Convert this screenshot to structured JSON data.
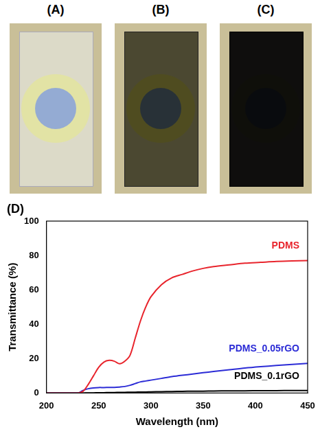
{
  "panels": [
    {
      "label": "(A)"
    },
    {
      "label": "(B)"
    },
    {
      "label": "(C)"
    }
  ],
  "chart_data": {
    "type": "line",
    "panel_label": "(D)",
    "x_label": "Wavelength (nm)",
    "y_label": "Transmittance (%)",
    "x": [
      200,
      210,
      220,
      230,
      235,
      240,
      245,
      250,
      255,
      260,
      265,
      270,
      275,
      280,
      285,
      290,
      295,
      300,
      310,
      320,
      330,
      340,
      350,
      360,
      375,
      390,
      405,
      420,
      435,
      450
    ],
    "series": [
      {
        "name": "PDMS",
        "color": "#e8242c",
        "values": [
          0,
          0,
          0,
          0,
          1,
          5,
          10,
          15,
          18,
          19,
          18.5,
          17,
          18.5,
          22,
          32,
          42,
          50,
          56,
          63,
          67,
          69,
          71,
          72.5,
          73.5,
          74.5,
          75.5,
          76,
          76.5,
          76.8,
          77
        ]
      },
      {
        "name": "PDMS_0.05rGO",
        "color": "#2b2bd6",
        "values": [
          0,
          0,
          0,
          0,
          1.5,
          2.5,
          3,
          3.2,
          3.2,
          3.3,
          3.3,
          3.5,
          3.8,
          4.5,
          5.5,
          6.5,
          7,
          7.5,
          8.5,
          9.5,
          10.3,
          11,
          11.8,
          12.5,
          13.5,
          14.5,
          15.3,
          16,
          16.6,
          17.2
        ]
      },
      {
        "name": "PDMS_0.1rGO",
        "color": "#000000",
        "values": [
          0,
          0,
          0,
          0,
          0,
          0.1,
          0.1,
          0.2,
          0.2,
          0.3,
          0.3,
          0.4,
          0.4,
          0.5,
          0.5,
          0.6,
          0.6,
          0.7,
          0.8,
          0.9,
          1,
          1.1,
          1.1,
          1.2,
          1.3,
          1.3,
          1.4,
          1.4,
          1.5,
          1.5
        ]
      }
    ],
    "xlim": [
      200,
      450
    ],
    "xticks": [
      200,
      250,
      300,
      350,
      400,
      450
    ],
    "ylim": [
      0,
      100
    ],
    "yticks": [
      0,
      20,
      40,
      60,
      80,
      100
    ],
    "grid": false
  }
}
